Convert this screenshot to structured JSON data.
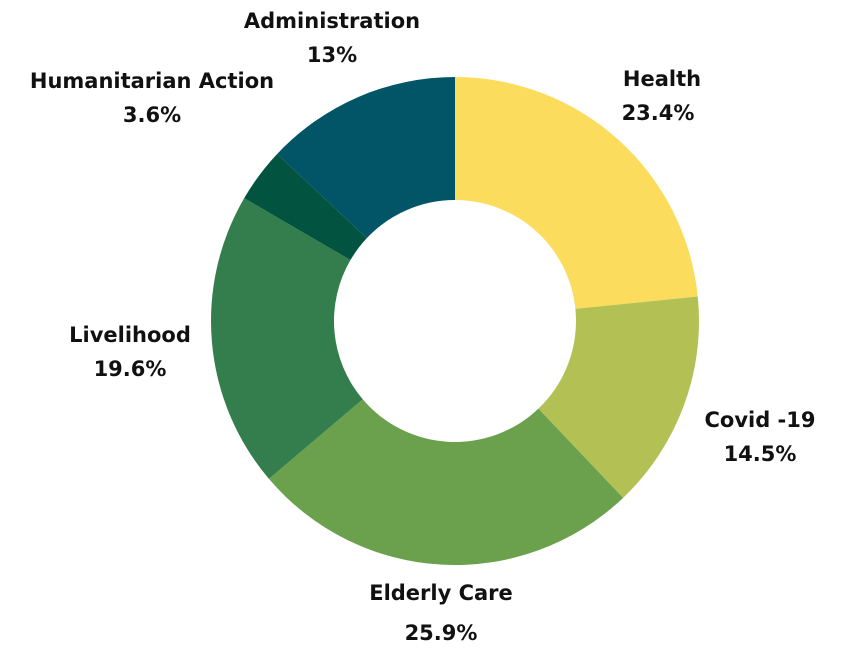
{
  "chart_data": {
    "type": "pie",
    "style": "donut",
    "title": "",
    "legend": "none",
    "slices": [
      {
        "label": "Health",
        "value_label": "23.4%",
        "value": 23.4,
        "color": "#fcdc5c"
      },
      {
        "label": "Covid -19",
        "value_label": "14.5%",
        "value": 14.5,
        "color": "#b3c154"
      },
      {
        "label": "Elderly Care",
        "value_label": "25.9%",
        "value": 25.9,
        "color": "#6ba14d"
      },
      {
        "label": "Livelihood",
        "value_label": "19.6%",
        "value": 19.6,
        "color": "#347d4c"
      },
      {
        "label": "Humanitarian Action",
        "value_label": "3.6%",
        "value": 3.6,
        "color": "#02533f"
      },
      {
        "label": "Administration",
        "value_label": "13%",
        "value": 13,
        "color": "#025567"
      }
    ]
  }
}
